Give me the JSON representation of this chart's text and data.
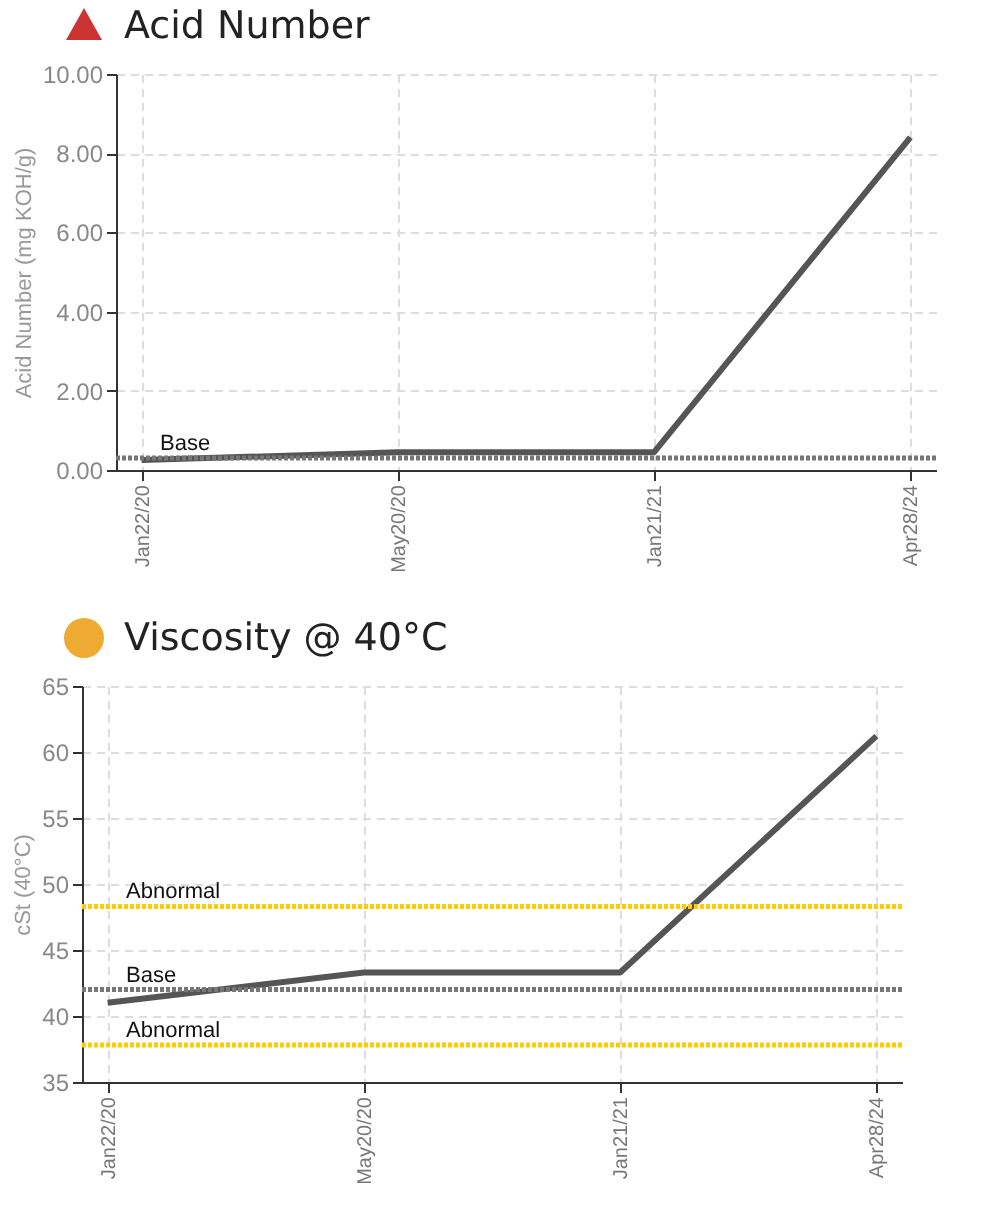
{
  "chart_data": [
    {
      "type": "line",
      "title": "Acid Number",
      "ylabel": "Acid Number (mg KOH/g)",
      "categories": [
        "Jan22/20",
        "May20/20",
        "Jan21/21",
        "Apr28/24"
      ],
      "series": [
        {
          "color": "#555555",
          "values": [
            0.25,
            0.45,
            0.45,
            8.4
          ]
        }
      ],
      "ylim": [
        0,
        10
      ],
      "yticks": [
        {
          "value": 0,
          "label": "0.00"
        },
        {
          "value": 2,
          "label": "2.00"
        },
        {
          "value": 4,
          "label": "4.00"
        },
        {
          "value": 6,
          "label": "6.00"
        },
        {
          "value": 8,
          "label": "8.00"
        },
        {
          "value": 10,
          "label": "10.00"
        }
      ],
      "grid": true,
      "marker": "none",
      "ref_lines": [
        {
          "axis": "y",
          "value": 0.3,
          "label": "Base",
          "color": "#777777",
          "line_style": "dotted"
        }
      ]
    },
    {
      "type": "line",
      "title": "Viscosity @ 40°C",
      "ylabel": "cSt (40°C)",
      "categories": [
        "Jan22/20",
        "May20/20",
        "Jan21/21",
        "Apr28/24"
      ],
      "series": [
        {
          "color": "#555555",
          "values": [
            41,
            43.3,
            43.3,
            61.2
          ]
        }
      ],
      "ylim": [
        35,
        65
      ],
      "yticks": [
        35,
        40,
        45,
        50,
        55,
        60,
        65
      ],
      "grid": true,
      "marker": "none",
      "ref_lines": [
        {
          "axis": "y",
          "value": 48.3,
          "label": "Abnormal",
          "color": "#ffcc00",
          "line_style": "dotted"
        },
        {
          "axis": "y",
          "value": 42,
          "label": "Base",
          "color": "#777777",
          "line_style": "dotted"
        },
        {
          "axis": "y",
          "value": 37.8,
          "label": "Abnormal",
          "color": "#ffcc00",
          "line_style": "dotted"
        }
      ]
    }
  ]
}
